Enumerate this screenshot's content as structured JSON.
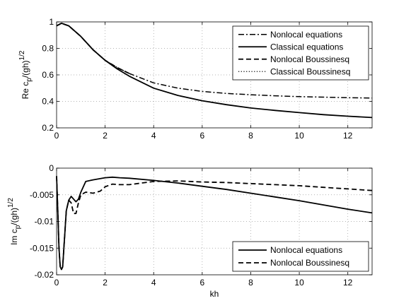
{
  "chart_data": [
    {
      "type": "line",
      "xlabel": "",
      "ylabel": "Re c_p/(gh)^1/2",
      "xlim": [
        0,
        13
      ],
      "ylim": [
        0.2,
        1.0
      ],
      "xticks": [
        0,
        2,
        4,
        6,
        8,
        10,
        12
      ],
      "yticks": [
        0.2,
        0.4,
        0.6,
        0.8,
        1.0
      ],
      "xtick_labels": [
        "0",
        "2",
        "4",
        "6",
        "8",
        "10",
        "12"
      ],
      "ytick_labels": [
        "0.2",
        "0.4",
        "0.6",
        "0.8",
        "1"
      ],
      "grid": true,
      "legend_position": "top-right",
      "series": [
        {
          "name": "Nonlocal equations",
          "style": "dashdot",
          "x": [
            0,
            0.2,
            0.5,
            1,
            1.5,
            2,
            2.5,
            3,
            4,
            5,
            6,
            7,
            8,
            9,
            10,
            11,
            12,
            13
          ],
          "y": [
            0.97,
            0.99,
            0.97,
            0.89,
            0.79,
            0.71,
            0.655,
            0.61,
            0.54,
            0.5,
            0.475,
            0.46,
            0.45,
            0.442,
            0.436,
            0.432,
            0.428,
            0.425
          ]
        },
        {
          "name": "Classical equations",
          "style": "solid",
          "x": [
            0,
            0.2,
            0.5,
            1,
            1.5,
            2,
            2.5,
            3,
            4,
            5,
            6,
            7,
            8,
            9,
            10,
            11,
            12,
            13
          ],
          "y": [
            0.97,
            0.99,
            0.97,
            0.89,
            0.79,
            0.71,
            0.645,
            0.59,
            0.5,
            0.445,
            0.405,
            0.375,
            0.35,
            0.332,
            0.315,
            0.3,
            0.288,
            0.278
          ]
        },
        {
          "name": "Nonlocal Boussinesq",
          "style": "dashed",
          "x": [
            0,
            0.2,
            0.5,
            1,
            1.5,
            2,
            2.5,
            3
          ],
          "y": [
            0.97,
            0.99,
            0.97,
            0.89,
            0.79,
            0.71,
            0.655,
            0.61
          ]
        },
        {
          "name": "Classical Boussinesq",
          "style": "dotted",
          "x": [
            0,
            0.2,
            0.5,
            1,
            1.5,
            2,
            2.5
          ],
          "y": [
            0.97,
            0.99,
            0.97,
            0.89,
            0.79,
            0.71,
            0.65
          ]
        }
      ]
    },
    {
      "type": "line",
      "xlabel": "kh",
      "ylabel": "Im c_p/(gh)^1/2",
      "xlim": [
        0,
        13
      ],
      "ylim": [
        -0.02,
        0
      ],
      "xticks": [
        0,
        2,
        4,
        6,
        8,
        10,
        12
      ],
      "yticks": [
        -0.02,
        -0.015,
        -0.01,
        -0.005,
        0
      ],
      "xtick_labels": [
        "0",
        "2",
        "4",
        "6",
        "8",
        "10",
        "12"
      ],
      "ytick_labels": [
        "-0.02",
        "-0.015",
        "-0.01",
        "-0.005",
        "0"
      ],
      "grid": true,
      "legend_position": "bottom-right",
      "series": [
        {
          "name": "Nonlocal equations",
          "style": "solid",
          "x": [
            0,
            0.05,
            0.1,
            0.15,
            0.2,
            0.25,
            0.3,
            0.4,
            0.5,
            0.6,
            0.7,
            0.8,
            0.9,
            1.0,
            1.2,
            1.5,
            2,
            2.3,
            2.6,
            3,
            4,
            5,
            6,
            7,
            8,
            9,
            10,
            11,
            12,
            13
          ],
          "y": [
            -0.0015,
            -0.008,
            -0.015,
            -0.0185,
            -0.019,
            -0.0185,
            -0.015,
            -0.008,
            -0.006,
            -0.0053,
            -0.0058,
            -0.0063,
            -0.0058,
            -0.0045,
            -0.0025,
            -0.0022,
            -0.0018,
            -0.0017,
            -0.0018,
            -0.0019,
            -0.0023,
            -0.0028,
            -0.0034,
            -0.004,
            -0.0047,
            -0.0054,
            -0.0061,
            -0.0069,
            -0.0077,
            -0.0084
          ]
        },
        {
          "name": "Nonlocal Boussinesq",
          "style": "dashed",
          "x": [
            0,
            0.05,
            0.1,
            0.15,
            0.2,
            0.25,
            0.3,
            0.4,
            0.5,
            0.6,
            0.7,
            0.8,
            0.9,
            1.0,
            1.2,
            1.5,
            1.8,
            2.0,
            2.3,
            2.6,
            3,
            3.5,
            4,
            5,
            6,
            7,
            8,
            9,
            10,
            11,
            12,
            13
          ],
          "y": [
            -0.0015,
            -0.008,
            -0.015,
            -0.0185,
            -0.019,
            -0.0185,
            -0.015,
            -0.008,
            -0.006,
            -0.0065,
            -0.0085,
            -0.0085,
            -0.0065,
            -0.005,
            -0.0045,
            -0.0047,
            -0.0043,
            -0.0035,
            -0.003,
            -0.0031,
            -0.0031,
            -0.0028,
            -0.0025,
            -0.0024,
            -0.0026,
            -0.0027,
            -0.0029,
            -0.0031,
            -0.0033,
            -0.0036,
            -0.0039,
            -0.0042
          ]
        }
      ]
    }
  ]
}
